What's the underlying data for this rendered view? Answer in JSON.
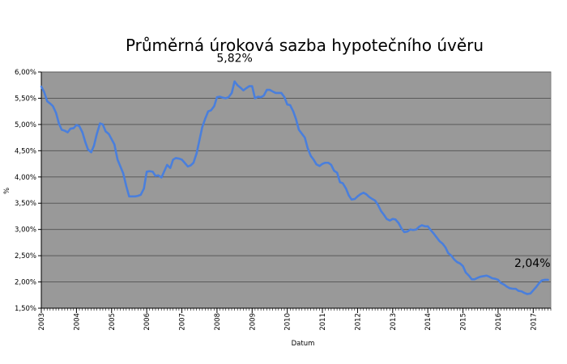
{
  "chart_data": {
    "type": "line",
    "title": "Průměrná úroková sazba hypotečního úvěru",
    "xlabel": "Datum",
    "ylabel": "%",
    "ylim": [
      1.5,
      6.0
    ],
    "yticks": [
      1.5,
      2.0,
      2.5,
      3.0,
      3.5,
      4.0,
      4.5,
      5.0,
      5.5,
      6.0
    ],
    "ytick_labels": [
      "1,50%",
      "2,00%",
      "2,50%",
      "3,00%",
      "3,50%",
      "4,00%",
      "4,50%",
      "5,00%",
      "5,50%",
      "6,00%"
    ],
    "xlim": [
      2003.0,
      2017.5
    ],
    "xticks": [
      2003,
      2004,
      2005,
      2006,
      2007,
      2008,
      2009,
      2010,
      2011,
      2012,
      2013,
      2014,
      2015,
      2016,
      2017
    ],
    "xtick_labels": [
      "2003",
      "2004",
      "2005",
      "2006",
      "2007",
      "2008",
      "2009",
      "2010",
      "2011",
      "2012",
      "2013",
      "2014",
      "2015",
      "2016",
      "2017"
    ],
    "grid": true,
    "background": "#999999",
    "series": [
      {
        "color": "#4a7fdc",
        "points": [
          [
            2003.0,
            5.72
          ],
          [
            2003.08,
            5.62
          ],
          [
            2003.17,
            5.44
          ],
          [
            2003.25,
            5.4
          ],
          [
            2003.33,
            5.35
          ],
          [
            2003.42,
            5.22
          ],
          [
            2003.5,
            5.02
          ],
          [
            2003.58,
            4.9
          ],
          [
            2003.67,
            4.88
          ],
          [
            2003.75,
            4.85
          ],
          [
            2003.83,
            4.92
          ],
          [
            2003.92,
            4.93
          ],
          [
            2004.0,
            4.99
          ],
          [
            2004.08,
            4.97
          ],
          [
            2004.17,
            4.85
          ],
          [
            2004.25,
            4.67
          ],
          [
            2004.33,
            4.52
          ],
          [
            2004.42,
            4.47
          ],
          [
            2004.5,
            4.6
          ],
          [
            2004.58,
            4.82
          ],
          [
            2004.67,
            5.02
          ],
          [
            2004.75,
            5.0
          ],
          [
            2004.83,
            4.87
          ],
          [
            2004.92,
            4.82
          ],
          [
            2005.0,
            4.72
          ],
          [
            2005.08,
            4.62
          ],
          [
            2005.17,
            4.33
          ],
          [
            2005.25,
            4.2
          ],
          [
            2005.33,
            4.07
          ],
          [
            2005.42,
            3.82
          ],
          [
            2005.5,
            3.63
          ],
          [
            2005.58,
            3.63
          ],
          [
            2005.67,
            3.63
          ],
          [
            2005.75,
            3.64
          ],
          [
            2005.83,
            3.66
          ],
          [
            2005.92,
            3.78
          ],
          [
            2006.0,
            4.1
          ],
          [
            2006.08,
            4.11
          ],
          [
            2006.17,
            4.1
          ],
          [
            2006.25,
            4.02
          ],
          [
            2006.33,
            4.03
          ],
          [
            2006.42,
            3.99
          ],
          [
            2006.5,
            4.11
          ],
          [
            2006.58,
            4.23
          ],
          [
            2006.67,
            4.17
          ],
          [
            2006.75,
            4.33
          ],
          [
            2006.83,
            4.36
          ],
          [
            2006.92,
            4.35
          ],
          [
            2007.0,
            4.33
          ],
          [
            2007.08,
            4.27
          ],
          [
            2007.17,
            4.2
          ],
          [
            2007.25,
            4.22
          ],
          [
            2007.33,
            4.27
          ],
          [
            2007.42,
            4.45
          ],
          [
            2007.5,
            4.7
          ],
          [
            2007.58,
            4.95
          ],
          [
            2007.67,
            5.12
          ],
          [
            2007.75,
            5.25
          ],
          [
            2007.83,
            5.27
          ],
          [
            2007.92,
            5.35
          ],
          [
            2008.0,
            5.52
          ],
          [
            2008.08,
            5.53
          ],
          [
            2008.17,
            5.51
          ],
          [
            2008.25,
            5.5
          ],
          [
            2008.33,
            5.52
          ],
          [
            2008.42,
            5.6
          ],
          [
            2008.5,
            5.82
          ],
          [
            2008.58,
            5.75
          ],
          [
            2008.67,
            5.7
          ],
          [
            2008.75,
            5.65
          ],
          [
            2008.83,
            5.69
          ],
          [
            2008.92,
            5.73
          ],
          [
            2009.0,
            5.73
          ],
          [
            2009.08,
            5.5
          ],
          [
            2009.17,
            5.53
          ],
          [
            2009.25,
            5.52
          ],
          [
            2009.33,
            5.55
          ],
          [
            2009.42,
            5.66
          ],
          [
            2009.5,
            5.66
          ],
          [
            2009.58,
            5.63
          ],
          [
            2009.67,
            5.6
          ],
          [
            2009.75,
            5.6
          ],
          [
            2009.83,
            5.6
          ],
          [
            2009.92,
            5.52
          ],
          [
            2010.0,
            5.38
          ],
          [
            2010.08,
            5.37
          ],
          [
            2010.17,
            5.25
          ],
          [
            2010.25,
            5.1
          ],
          [
            2010.33,
            4.9
          ],
          [
            2010.42,
            4.82
          ],
          [
            2010.5,
            4.75
          ],
          [
            2010.58,
            4.55
          ],
          [
            2010.67,
            4.4
          ],
          [
            2010.75,
            4.33
          ],
          [
            2010.83,
            4.24
          ],
          [
            2010.92,
            4.21
          ],
          [
            2011.0,
            4.25
          ],
          [
            2011.08,
            4.27
          ],
          [
            2011.17,
            4.27
          ],
          [
            2011.25,
            4.23
          ],
          [
            2011.33,
            4.12
          ],
          [
            2011.42,
            4.08
          ],
          [
            2011.5,
            3.9
          ],
          [
            2011.58,
            3.88
          ],
          [
            2011.67,
            3.78
          ],
          [
            2011.75,
            3.65
          ],
          [
            2011.83,
            3.57
          ],
          [
            2011.92,
            3.58
          ],
          [
            2012.0,
            3.63
          ],
          [
            2012.08,
            3.67
          ],
          [
            2012.17,
            3.7
          ],
          [
            2012.25,
            3.67
          ],
          [
            2012.33,
            3.62
          ],
          [
            2012.42,
            3.58
          ],
          [
            2012.5,
            3.55
          ],
          [
            2012.58,
            3.47
          ],
          [
            2012.67,
            3.35
          ],
          [
            2012.75,
            3.28
          ],
          [
            2012.83,
            3.2
          ],
          [
            2012.92,
            3.17
          ],
          [
            2013.0,
            3.2
          ],
          [
            2013.08,
            3.19
          ],
          [
            2013.17,
            3.12
          ],
          [
            2013.25,
            3.02
          ],
          [
            2013.33,
            2.95
          ],
          [
            2013.42,
            2.96
          ],
          [
            2013.5,
            3.0
          ],
          [
            2013.58,
            2.99
          ],
          [
            2013.67,
            3.0
          ],
          [
            2013.75,
            3.05
          ],
          [
            2013.83,
            3.08
          ],
          [
            2013.92,
            3.06
          ],
          [
            2014.0,
            3.06
          ],
          [
            2014.08,
            2.99
          ],
          [
            2014.17,
            2.92
          ],
          [
            2014.25,
            2.85
          ],
          [
            2014.33,
            2.78
          ],
          [
            2014.42,
            2.73
          ],
          [
            2014.5,
            2.66
          ],
          [
            2014.58,
            2.55
          ],
          [
            2014.67,
            2.5
          ],
          [
            2014.75,
            2.43
          ],
          [
            2014.83,
            2.38
          ],
          [
            2014.92,
            2.35
          ],
          [
            2015.0,
            2.3
          ],
          [
            2015.08,
            2.18
          ],
          [
            2015.17,
            2.12
          ],
          [
            2015.25,
            2.05
          ],
          [
            2015.33,
            2.05
          ],
          [
            2015.42,
            2.08
          ],
          [
            2015.5,
            2.1
          ],
          [
            2015.58,
            2.11
          ],
          [
            2015.67,
            2.12
          ],
          [
            2015.75,
            2.1
          ],
          [
            2015.83,
            2.07
          ],
          [
            2015.92,
            2.06
          ],
          [
            2016.0,
            2.04
          ],
          [
            2016.08,
            1.98
          ],
          [
            2016.17,
            1.95
          ],
          [
            2016.25,
            1.91
          ],
          [
            2016.33,
            1.88
          ],
          [
            2016.42,
            1.87
          ],
          [
            2016.5,
            1.87
          ],
          [
            2016.58,
            1.83
          ],
          [
            2016.67,
            1.82
          ],
          [
            2016.75,
            1.79
          ],
          [
            2016.83,
            1.77
          ],
          [
            2016.92,
            1.78
          ],
          [
            2017.0,
            1.84
          ],
          [
            2017.08,
            1.9
          ],
          [
            2017.17,
            1.98
          ],
          [
            2017.25,
            2.03
          ],
          [
            2017.33,
            2.04
          ],
          [
            2017.42,
            2.04
          ]
        ]
      }
    ],
    "annotations": [
      {
        "text": "5,82%",
        "x": 2008.5,
        "y": 5.82,
        "placement": "above"
      },
      {
        "text": "2,04%",
        "x": 2017.42,
        "y": 2.04,
        "placement": "above-left"
      }
    ]
  }
}
